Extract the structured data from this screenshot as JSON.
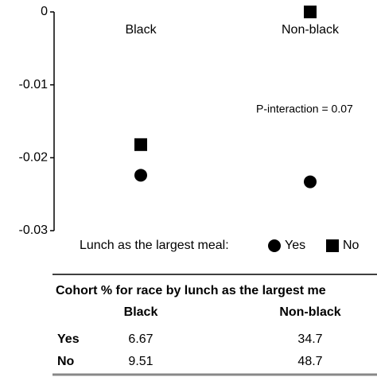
{
  "chart_data": {
    "type": "dot",
    "categories": [
      "Black",
      "Non-black"
    ],
    "series": [
      {
        "name": "Yes",
        "color": "#000000",
        "marker": "circle",
        "values": [
          -0.0224,
          -0.0233
        ]
      },
      {
        "name": "No",
        "color": "#000000",
        "marker": "square",
        "values": [
          -0.0182,
          0
        ]
      }
    ],
    "ylim": [
      -0.03,
      0
    ],
    "yticks": [
      0,
      -0.01,
      -0.02,
      -0.03
    ],
    "annotation": "P-interaction = 0.07",
    "legend_title": "Lunch as the largest meal:"
  },
  "table": {
    "title": "Cohort % for race by lunch as the largest me",
    "columns": [
      "Black",
      "Non-black"
    ],
    "rows": [
      [
        "Yes",
        "6.67",
        "34.7"
      ],
      [
        "No",
        "9.51",
        "48.7"
      ]
    ]
  }
}
